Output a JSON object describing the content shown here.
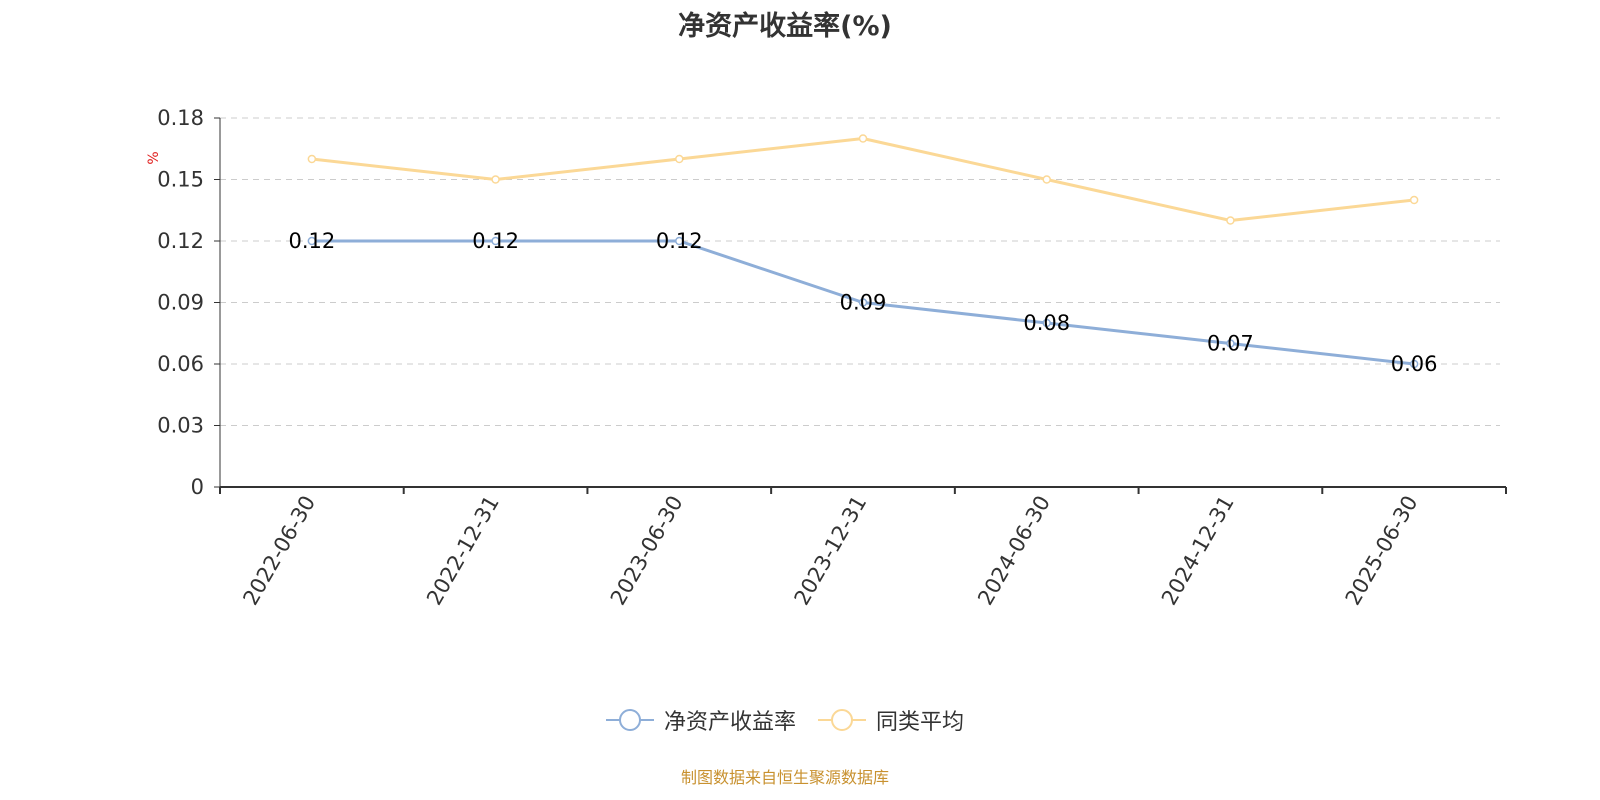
{
  "chart_data": {
    "type": "line",
    "title": "净资产收益率(%)",
    "y_unit": "%",
    "categories": [
      "2022-06-30",
      "2022-12-31",
      "2023-06-30",
      "2023-12-31",
      "2024-06-30",
      "2024-12-31",
      "2025-06-30"
    ],
    "ylim": [
      0,
      0.18
    ],
    "yticks": [
      "0",
      "0.03",
      "0.06",
      "0.09",
      "0.12",
      "0.15",
      "0.18"
    ],
    "grid": true,
    "legend_position": "bottom",
    "series": [
      {
        "name": "净资产收益率",
        "values": [
          0.12,
          0.12,
          0.12,
          0.09,
          0.08,
          0.07,
          0.06
        ],
        "data_labels": [
          "0.12",
          "0.12",
          "0.12",
          "0.09",
          "0.08",
          "0.07",
          "0.06"
        ],
        "color": "#8eaed8"
      },
      {
        "name": "同类平均",
        "values": [
          0.16,
          0.15,
          0.16,
          0.17,
          0.15,
          0.13,
          0.14
        ],
        "color": "#fbd896"
      }
    ],
    "source": "制图数据来自恒生聚源数据库"
  }
}
